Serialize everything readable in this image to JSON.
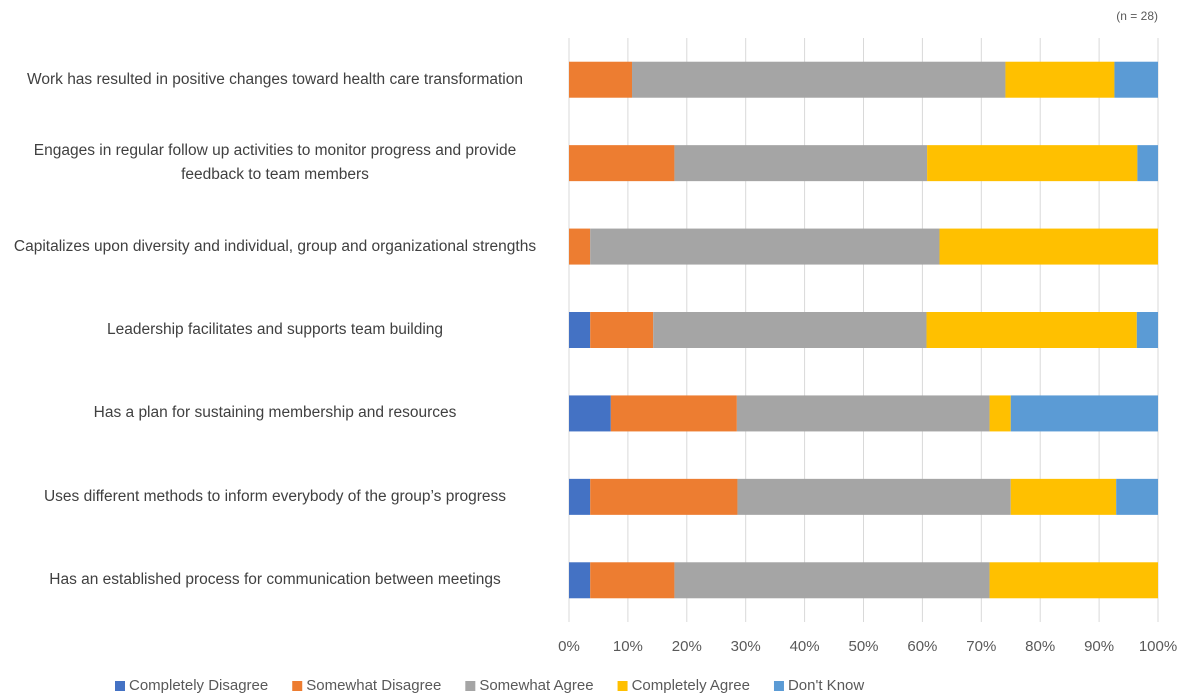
{
  "chart_data": {
    "type": "stacked_barh",
    "annotation": "(n = 28)",
    "categories": [
      "Work has resulted in positive changes toward health care transformation",
      "Engages in regular follow up activities to monitor progress and provide feedback to team members",
      "Capitalizes upon diversity and individual, group and organizational strengths",
      "Leadership facilitates and supports team building",
      "Has a plan for sustaining membership and resources",
      "Uses different methods to inform everybody of the group’s progress",
      "Has an established process for communication between meetings"
    ],
    "series": [
      {
        "name": "Completely Disagree",
        "color": "#4472c4",
        "values": [
          0,
          0,
          0,
          3.6,
          7.1,
          3.6,
          3.6
        ]
      },
      {
        "name": "Somewhat Disagree",
        "color": "#ed7d31",
        "values": [
          10.7,
          17.9,
          3.6,
          10.7,
          21.4,
          25.0,
          14.3
        ]
      },
      {
        "name": "Somewhat Agree",
        "color": "#a5a5a5",
        "values": [
          63.4,
          42.9,
          59.3,
          46.4,
          42.9,
          46.4,
          53.5
        ]
      },
      {
        "name": "Completely Agree",
        "color": "#ffc000",
        "values": [
          18.5,
          35.7,
          37.1,
          35.7,
          3.6,
          17.9,
          28.6
        ]
      },
      {
        "name": "Don't Know",
        "color": "#5b9bd5",
        "values": [
          7.4,
          3.5,
          0,
          3.6,
          25.0,
          7.1,
          0
        ]
      }
    ],
    "xlim": [
      0,
      100
    ],
    "xticks": [
      {
        "value": 0,
        "label": "0%"
      },
      {
        "value": 10,
        "label": "10%"
      },
      {
        "value": 20,
        "label": "20%"
      },
      {
        "value": 30,
        "label": "30%"
      },
      {
        "value": 40,
        "label": "40%"
      },
      {
        "value": 50,
        "label": "50%"
      },
      {
        "value": 60,
        "label": "60%"
      },
      {
        "value": 70,
        "label": "70%"
      },
      {
        "value": 80,
        "label": "80%"
      },
      {
        "value": 90,
        "label": "90%"
      },
      {
        "value": 100,
        "label": "100%"
      }
    ],
    "grid": true,
    "legend": "bottom"
  }
}
